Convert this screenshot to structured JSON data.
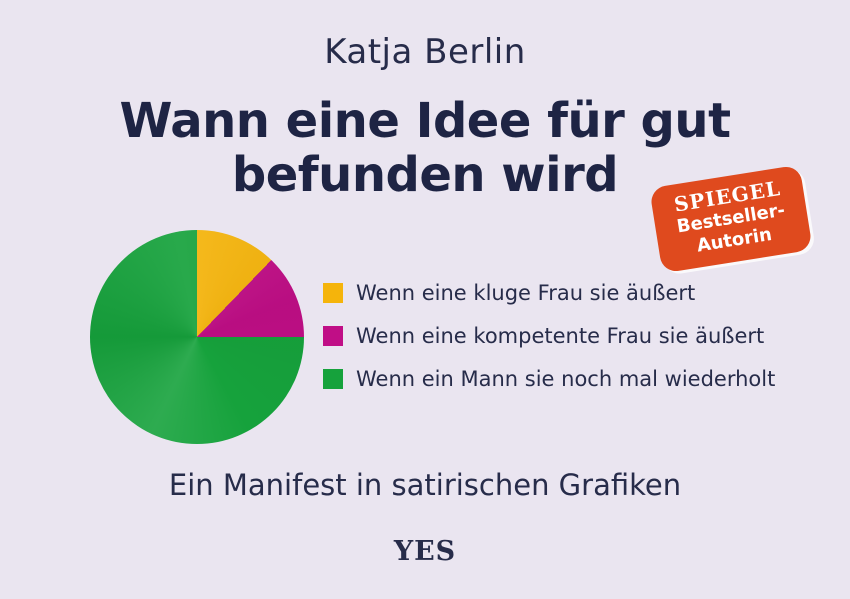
{
  "cover": {
    "author": "Katja Berlin",
    "title_line1": "Wann eine Idee für gut",
    "title_line2": "befunden wird",
    "subtitle": "Ein Manifest in satirischen Grafiken",
    "publisher_logo": "YES"
  },
  "badge": {
    "line1": "SPIEGEL",
    "line2": "Bestseller-",
    "line3": "Autorin",
    "background_color": "#df4a1e",
    "text_color": "#ffffff"
  },
  "colors": {
    "background": "#eae5f0",
    "text_navy": "#1e2444",
    "pie_yellow": "#f5b40b",
    "pie_magenta": "#c00e86",
    "pie_green": "#16a23c"
  },
  "chart_data": {
    "type": "pie",
    "title": "Wann eine Idee für gut befunden wird",
    "legend_position": "right",
    "start_angle_deg": 0,
    "slices": [
      {
        "label": "Wenn eine kluge Frau sie äußert",
        "color": "#f5b40b",
        "start_deg": 0,
        "end_deg": 44,
        "percent": 12.2
      },
      {
        "label": "Wenn eine kompetente Frau sie äußert",
        "color": "#c00e86",
        "start_deg": 44,
        "end_deg": 90,
        "percent": 12.8
      },
      {
        "label": "Wenn ein Mann sie noch mal wiederholt",
        "color": "#16a23c",
        "start_deg": 90,
        "end_deg": 360,
        "percent": 75.0
      }
    ]
  }
}
